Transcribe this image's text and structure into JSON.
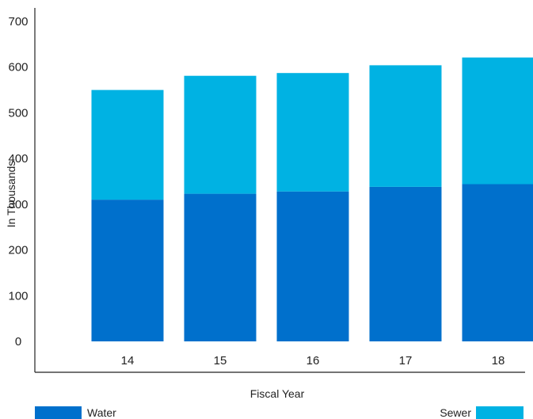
{
  "chart_data": {
    "type": "bar",
    "stacked": true,
    "categories": [
      "14",
      "15",
      "16",
      "17",
      "18"
    ],
    "series": [
      {
        "name": "Water",
        "color": "#0070CC",
        "values": [
          310,
          323,
          328,
          338,
          344
        ]
      },
      {
        "name": "Sewer",
        "color": "#00B2E3",
        "values": [
          240,
          258,
          259,
          266,
          277
        ]
      }
    ],
    "xlabel": "Fiscal Year",
    "ylabel": "In Thousands",
    "ylim": [
      0,
      700
    ],
    "yticks": [
      0,
      100,
      200,
      300,
      400,
      500,
      600,
      700
    ],
    "grid": false,
    "legend": "bottom"
  }
}
